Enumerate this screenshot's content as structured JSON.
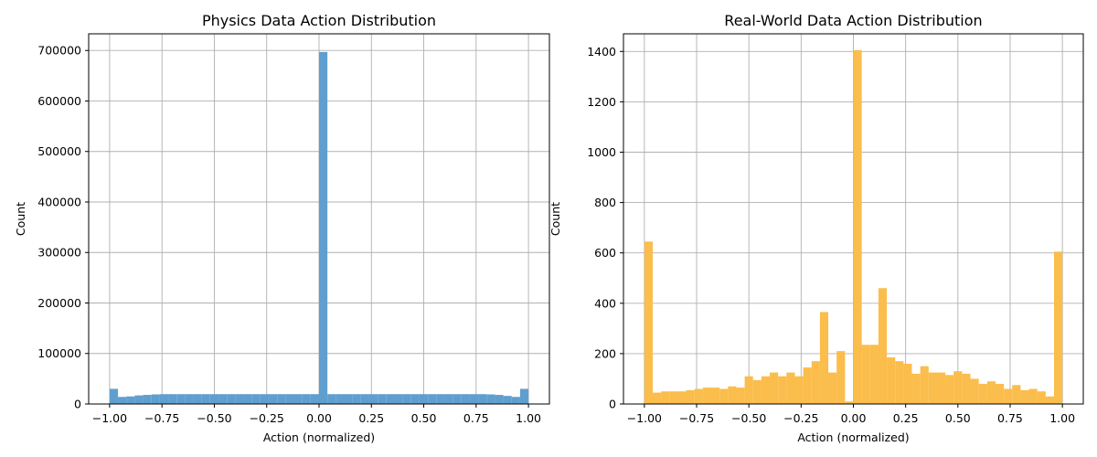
{
  "chart_data": [
    {
      "type": "bar",
      "title": "Physics Data Action Distribution",
      "xlabel": "Action (normalized)",
      "ylabel": "Count",
      "xlim": [
        -1.1,
        1.1
      ],
      "ylim": [
        0,
        733000
      ],
      "color": "#5f9fcf",
      "grid": true,
      "bin_edges_range": [
        -1.0,
        1.0
      ],
      "bin_count": 50,
      "values": [
        30000,
        14000,
        15000,
        17000,
        18000,
        19000,
        19500,
        19500,
        19500,
        19500,
        19500,
        19500,
        19500,
        19500,
        19500,
        19500,
        19500,
        19500,
        19500,
        19500,
        19500,
        19500,
        19500,
        19500,
        19500,
        697000,
        19500,
        19500,
        19500,
        19500,
        19500,
        19500,
        19500,
        19500,
        19500,
        19500,
        19500,
        19500,
        19500,
        19500,
        19500,
        19500,
        19500,
        19500,
        19500,
        19000,
        18000,
        16000,
        14000,
        30000
      ],
      "xticks": [
        -1.0,
        -0.75,
        -0.5,
        -0.25,
        0.0,
        0.25,
        0.5,
        0.75,
        1.0
      ],
      "xtick_labels": [
        "−1.00",
        "−0.75",
        "−0.50",
        "−0.25",
        "0.00",
        "0.25",
        "0.50",
        "0.75",
        "1.00"
      ],
      "yticks": [
        0,
        100000,
        200000,
        300000,
        400000,
        500000,
        600000,
        700000
      ],
      "ytick_labels": [
        "0",
        "100000",
        "200000",
        "300000",
        "400000",
        "500000",
        "600000",
        "700000"
      ]
    },
    {
      "type": "bar",
      "title": "Real-World Data Action Distribution",
      "xlabel": "Action (normalized)",
      "ylabel": "Count",
      "xlim": [
        -1.1,
        1.1
      ],
      "ylim": [
        0,
        1470
      ],
      "color": "#fbbd4b",
      "grid": true,
      "bin_edges_range": [
        -1.0,
        1.0
      ],
      "bin_count": 50,
      "values": [
        645,
        45,
        50,
        50,
        50,
        55,
        60,
        65,
        65,
        60,
        70,
        65,
        110,
        95,
        110,
        125,
        110,
        125,
        110,
        145,
        170,
        365,
        125,
        210,
        10,
        1405,
        235,
        235,
        460,
        185,
        170,
        160,
        120,
        150,
        125,
        125,
        115,
        130,
        120,
        100,
        80,
        90,
        80,
        60,
        75,
        55,
        60,
        50,
        30,
        605
      ],
      "xticks": [
        -1.0,
        -0.75,
        -0.5,
        -0.25,
        0.0,
        0.25,
        0.5,
        0.75,
        1.0
      ],
      "xtick_labels": [
        "−1.00",
        "−0.75",
        "−0.50",
        "−0.25",
        "0.00",
        "0.25",
        "0.50",
        "0.75",
        "1.00"
      ],
      "yticks": [
        0,
        200,
        400,
        600,
        800,
        1000,
        1200,
        1400
      ],
      "ytick_labels": [
        "0",
        "200",
        "400",
        "600",
        "800",
        "1000",
        "1200",
        "1400"
      ]
    }
  ]
}
